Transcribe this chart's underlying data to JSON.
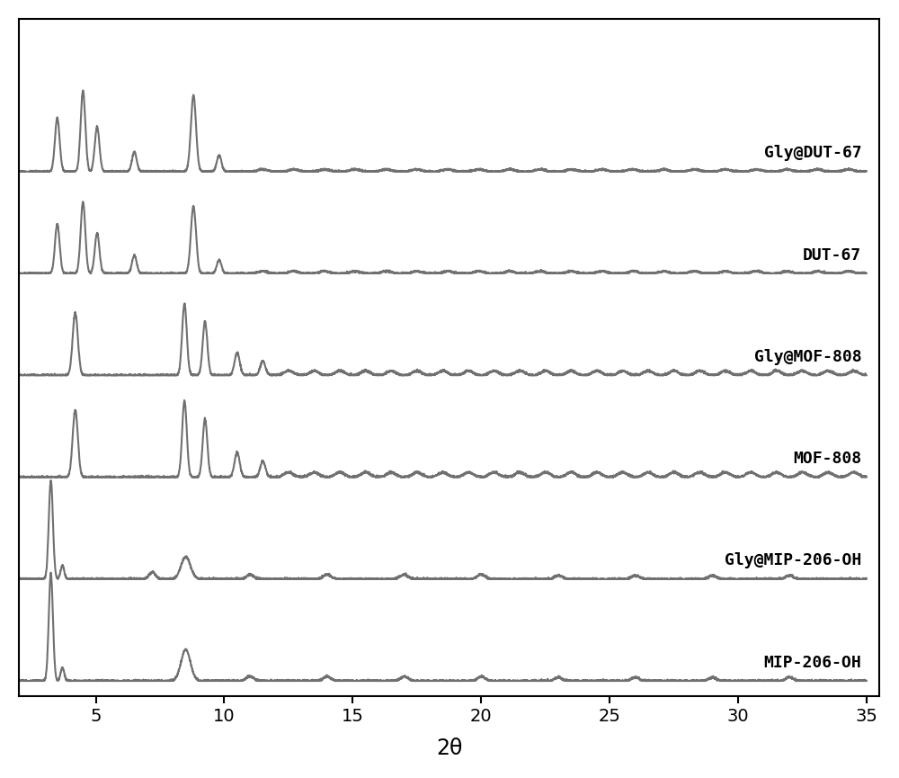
{
  "labels": [
    "Gly@DUT-67",
    "DUT-67",
    "Gly@MOF-808",
    "MOF-808",
    "Gly@MIP-206-OH",
    "MIP-206-OH"
  ],
  "x_min": 2,
  "x_max": 35,
  "x_ticks": [
    5,
    10,
    15,
    20,
    25,
    30,
    35
  ],
  "xlabel": "2θ",
  "line_color": "#707070",
  "background_color": "#ffffff",
  "label_color": "#000000",
  "offsets": [
    5.0,
    4.0,
    3.0,
    2.0,
    1.0,
    0.0
  ],
  "line_width": 1.5,
  "label_fontsize": 13
}
